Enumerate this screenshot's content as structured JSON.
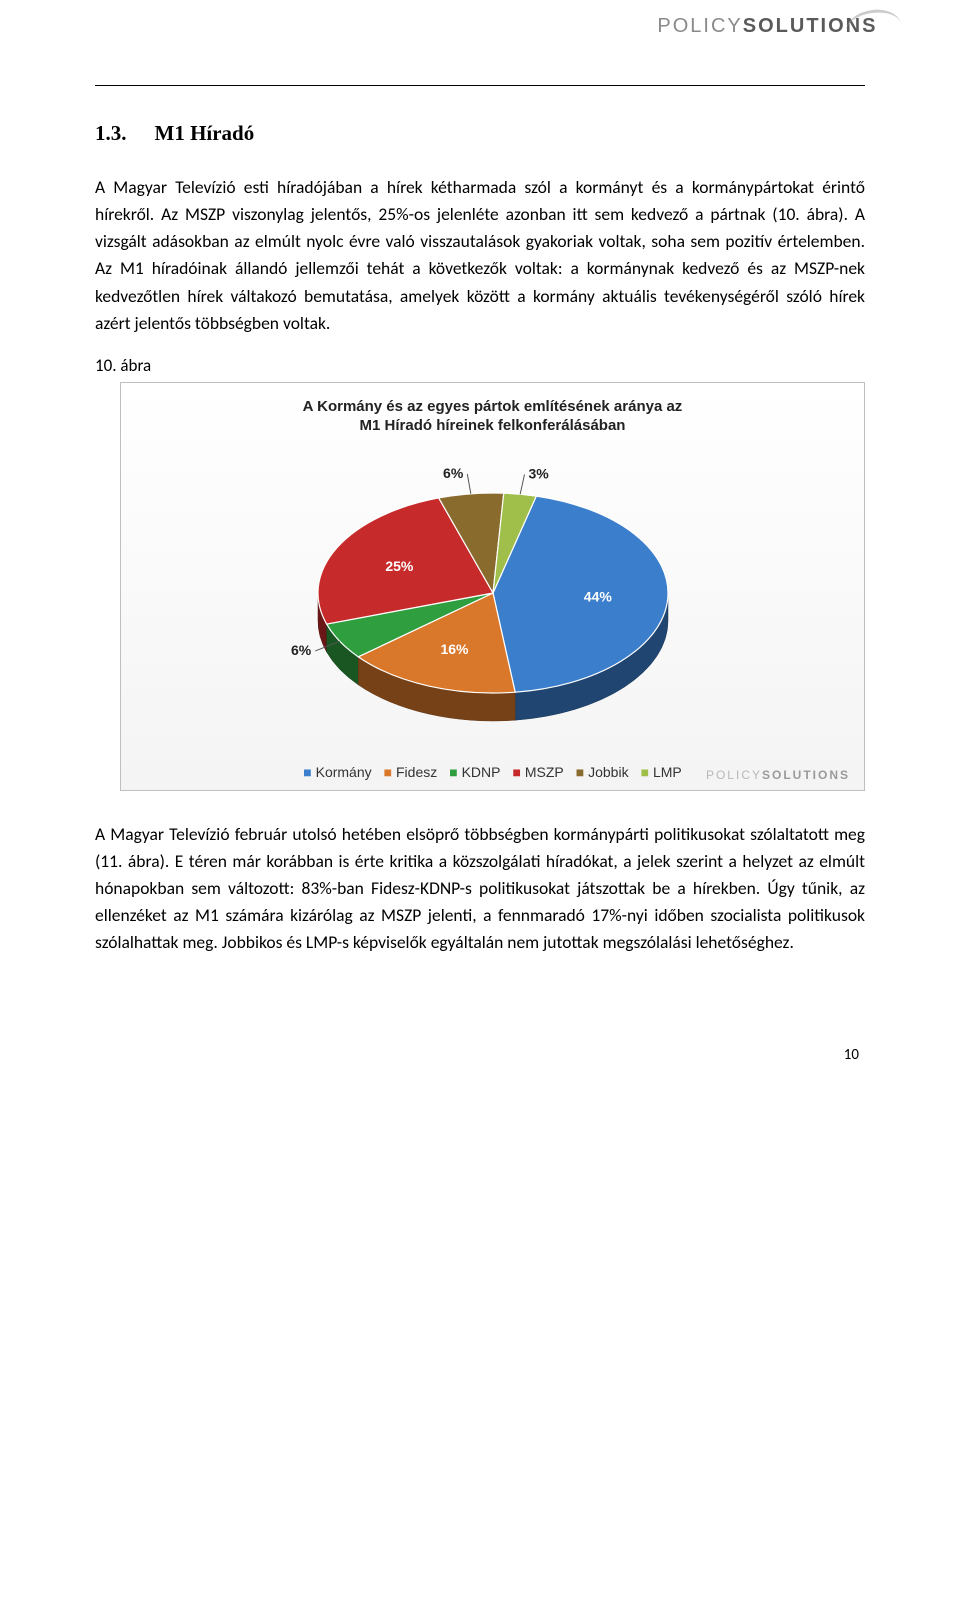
{
  "logo": {
    "part1": "POLICY",
    "part2": "SOLUTIONS"
  },
  "section": {
    "number": "1.3.",
    "title": "M1 Híradó"
  },
  "para1": "A Magyar Televízió esti híradójában a hírek kétharmada szól a kormányt és a kormánypártokat érintő hírekről. Az MSZP viszonylag jelentős, 25%-os jelenléte azonban itt sem kedvező a pártnak (10. ábra). A vizsgált adásokban az elmúlt nyolc évre való visszautalások gyakoriak voltak, soha sem pozitív értelemben. Az M1 híradóinak állandó jellemzői tehát a következők voltak: a kormánynak kedvező és az MSZP-nek kedvezőtlen hírek váltakozó bemutatása, amelyek között a kormány aktuális tevékenységéről szóló hírek azért jelentős többségben voltak.",
  "fig_label": "10. ábra",
  "chart": {
    "type": "pie-3d",
    "title_line1": "A Kormány és az egyes pártok említésének aránya az",
    "title_line2": "M1 Híradó híreinek felkonferálásában",
    "background": "#fafafa",
    "border_color": "#bfbfbf",
    "slices": [
      {
        "label": "Kormány",
        "value": 44,
        "color": "#3b7ecc",
        "text": "44%",
        "label_color": "#ffffff"
      },
      {
        "label": "Fidesz",
        "value": 16,
        "color": "#d9772a",
        "text": "16%",
        "label_color": "#ffffff"
      },
      {
        "label": "KDNP",
        "value": 6,
        "color": "#2f9e3f",
        "text": "6%",
        "label_color": "#ffffff"
      },
      {
        "label": "MSZP",
        "value": 25,
        "color": "#c62a2a",
        "text": "25%",
        "label_color": "#ffffff"
      },
      {
        "label": "Jobbik",
        "value": 6,
        "color": "#8a6b2e",
        "text": "6%",
        "label_color": "#222222"
      },
      {
        "label": "LMP",
        "value": 3,
        "color": "#9fbf4a",
        "text": "3%",
        "label_color": "#222222"
      }
    ],
    "legend_font_size": 14,
    "title_font_size": 15
  },
  "watermark": {
    "part1": "POLICY",
    "part2": "SOLUTIONS"
  },
  "para2": "A Magyar Televízió február utolsó hetében elsöprő többségben kormánypárti politikusokat szólaltatott meg (11. ábra). E téren már korábban is érte kritika a közszolgálati híradókat, a jelek szerint a helyzet az elmúlt hónapokban sem változott: 83%-ban Fidesz-KDNP-s politikusokat játszottak be a hírekben. Úgy tűnik, az ellenzéket az M1 számára kizárólag az MSZP jelenti, a fennmaradó 17%-nyi időben szocialista politikusok szólalhattak meg. Jobbikos és LMP-s képviselők egyáltalán nem jutottak megszólalási lehetőséghez.",
  "page_number": "10"
}
